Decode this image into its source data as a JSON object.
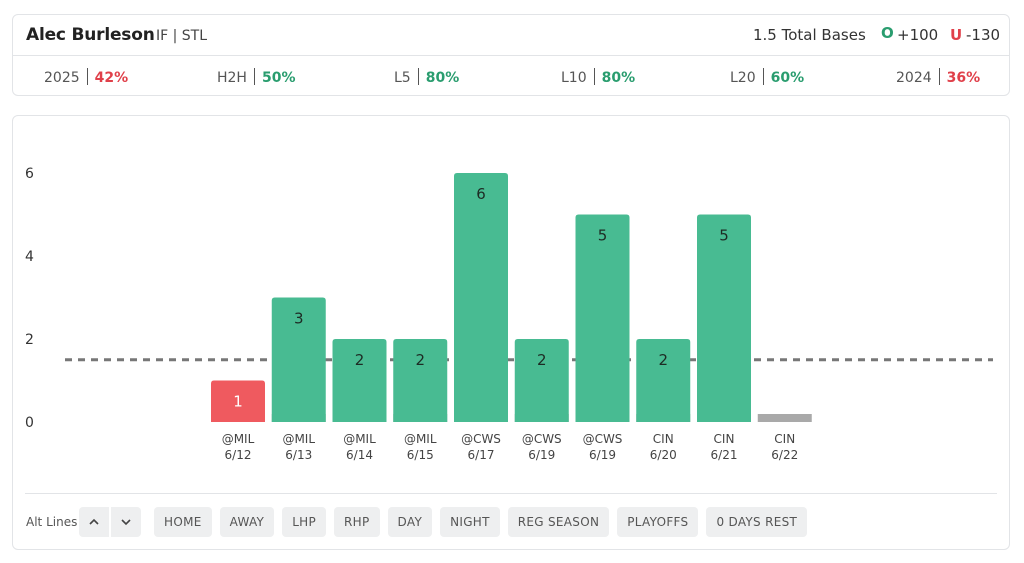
{
  "player": {
    "name": "Alec Burleson",
    "position": "IF | STL"
  },
  "prop": {
    "label": "1.5 Total Bases",
    "over_icon": "O",
    "over_odds": "+100",
    "under_icon": "U",
    "under_odds": "-130"
  },
  "stats": [
    {
      "label": "2025",
      "value": "42%",
      "color": "#e0404a"
    },
    {
      "label": "H2H",
      "value": "50%",
      "color": "#2a9d6f"
    },
    {
      "label": "L5",
      "value": "80%",
      "color": "#2a9d6f"
    },
    {
      "label": "L10",
      "value": "80%",
      "color": "#2a9d6f"
    },
    {
      "label": "L20",
      "value": "60%",
      "color": "#2a9d6f"
    },
    {
      "label": "2024",
      "value": "36%",
      "color": "#e0404a"
    }
  ],
  "colors": {
    "hit": "#48bb92",
    "miss": "#ef5a5f",
    "base": "#a9a9a9",
    "line": "#777777"
  },
  "chart_data": {
    "type": "bar",
    "title": "1.5 Total Bases",
    "categories": [
      "@MIL",
      "@MIL",
      "@MIL",
      "@MIL",
      "@CWS",
      "@CWS",
      "@CWS",
      "CIN",
      "CIN",
      "CIN"
    ],
    "dates": [
      "6/12",
      "6/13",
      "6/14",
      "6/15",
      "6/17",
      "6/19",
      "6/19",
      "6/20",
      "6/21",
      "6/22"
    ],
    "values": [
      1,
      3,
      2,
      2,
      6,
      2,
      5,
      2,
      5,
      0
    ],
    "value_labels": [
      "1",
      "3",
      "2",
      "2",
      "6",
      "2",
      "5",
      "2",
      "5",
      ""
    ],
    "line": 1.5,
    "yticks": [
      "0",
      "2",
      "4",
      "6"
    ],
    "ylim": [
      0,
      6
    ],
    "xlabel": "",
    "ylabel": ""
  },
  "alt_lines": {
    "label": "Alt Lines",
    "up_icon": "chevron-up-icon",
    "down_icon": "chevron-down-icon"
  },
  "filters": [
    "HOME",
    "AWAY",
    "LHP",
    "RHP",
    "DAY",
    "NIGHT",
    "REG SEASON",
    "PLAYOFFS",
    "0 DAYS REST"
  ]
}
